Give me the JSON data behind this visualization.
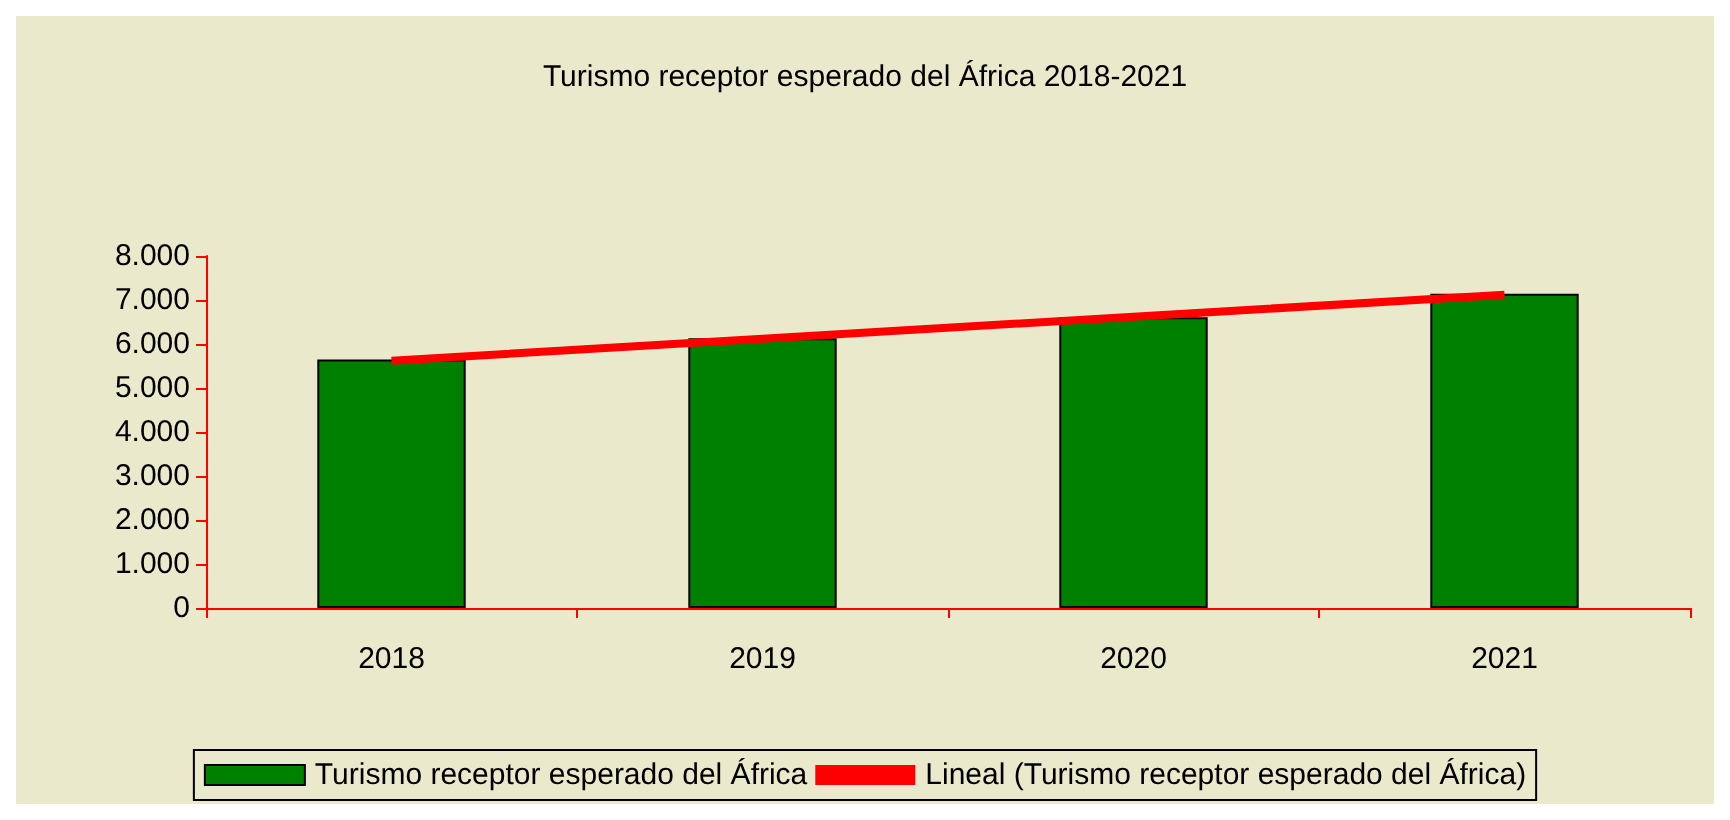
{
  "chart_data": {
    "type": "bar",
    "title": "Turismo receptor esperado del África 2018-2021",
    "categories": [
      "2018",
      "2019",
      "2020",
      "2021"
    ],
    "series": [
      {
        "name": "Turismo receptor esperado del África",
        "color": "#008000",
        "values": [
          5650,
          6130,
          6610,
          7140
        ]
      },
      {
        "name": "Lineal (Turismo receptor esperado del África)",
        "type": "line",
        "color": "#ff0000",
        "values": [
          5620,
          6120,
          6620,
          7120
        ]
      }
    ],
    "ylim": [
      0,
      8000
    ],
    "yticks": [
      0,
      {
        "value": 1000,
        "label": "1.000"
      },
      {
        "value": 2000,
        "label": "2.000"
      },
      {
        "value": 3000,
        "label": "3.000"
      },
      {
        "value": 4000,
        "label": "4.000"
      },
      {
        "value": 5000,
        "label": "5.000"
      },
      {
        "value": 6000,
        "label": "6.000"
      },
      {
        "value": 7000,
        "label": "7.000"
      },
      {
        "value": 8000,
        "label": "8.000"
      }
    ],
    "legend": "bottom",
    "grid": false,
    "marker": "none"
  }
}
